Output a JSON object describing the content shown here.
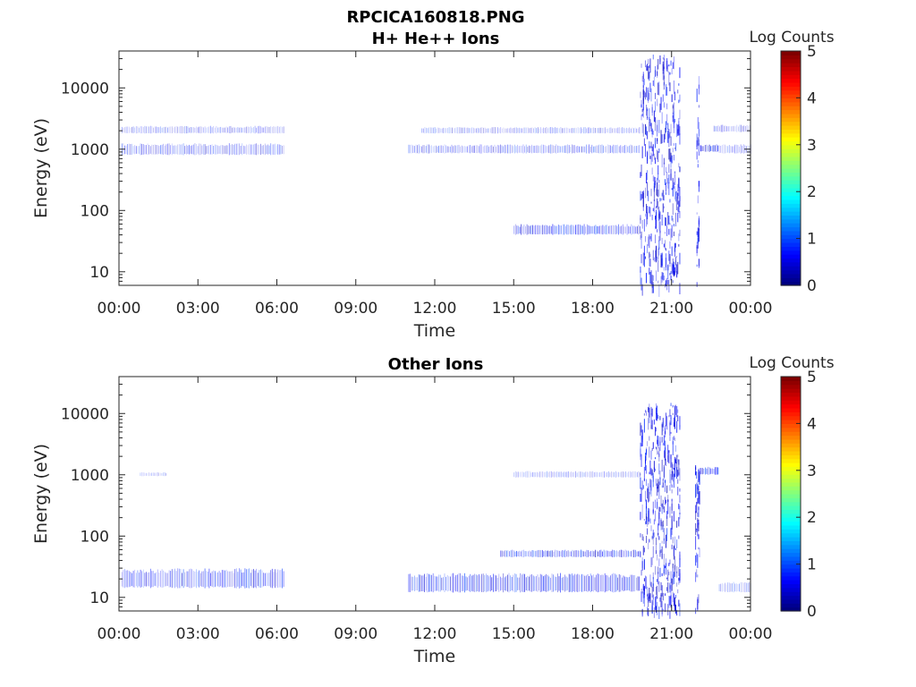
{
  "figure": {
    "title": "RPCICA160818.PNG"
  },
  "chart_data": [
    {
      "type": "heatmap",
      "title": "H+ He++ Ions",
      "xlabel": "Time",
      "ylabel": "Energy (eV)",
      "yscale": "log",
      "ylim": [
        6,
        40000
      ],
      "xlim_hours": [
        0,
        24
      ],
      "x_ticks": [
        "00:00",
        "03:00",
        "06:00",
        "09:00",
        "12:00",
        "15:00",
        "18:00",
        "21:00",
        "00:00"
      ],
      "y_ticks": [
        "10",
        "100",
        "1000",
        "10000"
      ],
      "colorbar": {
        "label": "Log Counts",
        "range": [
          0,
          5
        ],
        "ticks": [
          "0",
          "1",
          "2",
          "3",
          "4",
          "5"
        ],
        "colormap": "jet"
      },
      "bands": [
        {
          "t_start": 0.1,
          "t_end": 6.3,
          "e_low": 800,
          "e_high": 1250,
          "level": 0.55
        },
        {
          "t_start": 0.1,
          "t_end": 6.3,
          "e_low": 1800,
          "e_high": 2400,
          "level": 0.45
        },
        {
          "t_start": 11.0,
          "t_end": 19.8,
          "e_low": 850,
          "e_high": 1200,
          "level": 0.55
        },
        {
          "t_start": 11.5,
          "t_end": 19.8,
          "e_low": 1800,
          "e_high": 2300,
          "level": 0.45
        },
        {
          "t_start": 15.0,
          "t_end": 19.8,
          "e_low": 40,
          "e_high": 60,
          "level": 0.75
        },
        {
          "t_start": 19.8,
          "t_end": 21.3,
          "e_low": 6,
          "e_high": 35000,
          "level": 0.85
        },
        {
          "t_start": 21.95,
          "t_end": 22.05,
          "e_low": 6,
          "e_high": 18000,
          "level": 1.0
        },
        {
          "t_start": 22.1,
          "t_end": 22.8,
          "e_low": 900,
          "e_high": 1200,
          "level": 1.0
        },
        {
          "t_start": 22.8,
          "t_end": 24.0,
          "e_low": 850,
          "e_high": 1200,
          "level": 0.5
        },
        {
          "t_start": 22.6,
          "t_end": 24.0,
          "e_low": 1900,
          "e_high": 2500,
          "level": 0.5
        }
      ]
    },
    {
      "type": "heatmap",
      "title": "Other Ions",
      "xlabel": "Time",
      "ylabel": "Energy (eV)",
      "yscale": "log",
      "ylim": [
        6,
        40000
      ],
      "xlim_hours": [
        0,
        24
      ],
      "x_ticks": [
        "00:00",
        "03:00",
        "06:00",
        "09:00",
        "12:00",
        "15:00",
        "18:00",
        "21:00",
        "00:00"
      ],
      "y_ticks": [
        "10",
        "100",
        "1000",
        "10000"
      ],
      "colorbar": {
        "label": "Log Counts",
        "range": [
          0,
          5
        ],
        "ticks": [
          "0",
          "1",
          "2",
          "3",
          "4",
          "5"
        ],
        "colormap": "jet"
      },
      "bands": [
        {
          "t_start": 0.1,
          "t_end": 6.3,
          "e_low": 14,
          "e_high": 30,
          "level": 0.7
        },
        {
          "t_start": 0.8,
          "t_end": 1.8,
          "e_low": 950,
          "e_high": 1100,
          "level": 0.35
        },
        {
          "t_start": 11.0,
          "t_end": 19.8,
          "e_low": 12,
          "e_high": 25,
          "level": 0.75
        },
        {
          "t_start": 14.5,
          "t_end": 19.8,
          "e_low": 45,
          "e_high": 60,
          "level": 0.8
        },
        {
          "t_start": 15.0,
          "t_end": 19.8,
          "e_low": 900,
          "e_high": 1150,
          "level": 0.4
        },
        {
          "t_start": 19.8,
          "t_end": 21.3,
          "e_low": 6,
          "e_high": 15000,
          "level": 0.85
        },
        {
          "t_start": 21.9,
          "t_end": 22.05,
          "e_low": 6,
          "e_high": 1500,
          "level": 1.0
        },
        {
          "t_start": 22.05,
          "t_end": 22.8,
          "e_low": 1000,
          "e_high": 1350,
          "level": 1.0
        },
        {
          "t_start": 22.8,
          "t_end": 24.0,
          "e_low": 12,
          "e_high": 18,
          "level": 0.45
        }
      ]
    }
  ]
}
